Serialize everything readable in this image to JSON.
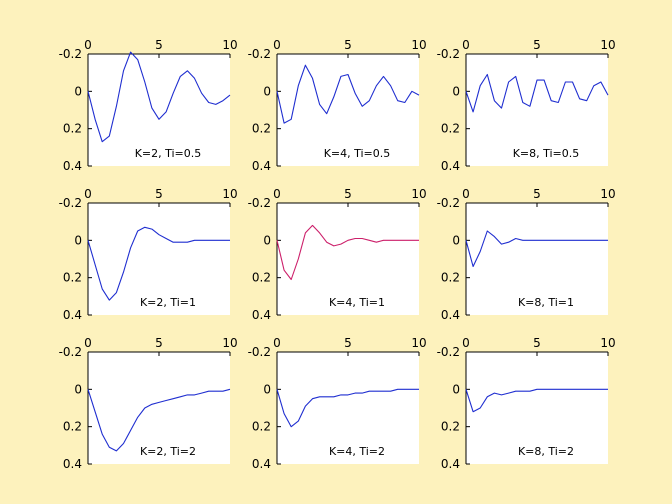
{
  "figure": {
    "background": "#fdf2bd",
    "axes_background": "#ffffff"
  },
  "chart_data": [
    {
      "type": "line",
      "label": "K=2, Ti=0.5",
      "color": "#1f2ed0",
      "x": [
        0,
        0.5,
        1,
        1.5,
        2,
        2.5,
        3,
        3.5,
        4,
        4.5,
        5,
        5.5,
        6,
        6.5,
        7,
        7.5,
        8,
        8.5,
        9,
        9.5,
        10
      ],
      "y": [
        0,
        0.15,
        0.27,
        0.24,
        0.08,
        -0.11,
        -0.21,
        -0.17,
        -0.05,
        0.09,
        0.15,
        0.11,
        0.01,
        -0.08,
        -0.11,
        -0.07,
        0.01,
        0.06,
        0.07,
        0.05,
        0.02
      ],
      "xlim": [
        0,
        10
      ],
      "ylim": [
        -0.2,
        0.4
      ],
      "xticks": [
        0,
        5,
        10
      ],
      "yticks": [
        -0.2,
        0,
        0.2,
        0.4
      ]
    },
    {
      "type": "line",
      "label": "K=4, Ti=0.5",
      "color": "#1f2ed0",
      "x": [
        0,
        0.5,
        1,
        1.5,
        2,
        2.5,
        3,
        3.5,
        4,
        4.5,
        5,
        5.5,
        6,
        6.5,
        7,
        7.5,
        8,
        8.5,
        9,
        9.5,
        10
      ],
      "y": [
        0,
        0.17,
        0.15,
        -0.03,
        -0.14,
        -0.07,
        0.07,
        0.12,
        0.03,
        -0.08,
        -0.09,
        0.01,
        0.08,
        0.05,
        -0.03,
        -0.08,
        -0.03,
        0.05,
        0.06,
        0.0,
        0.02
      ],
      "xlim": [
        0,
        10
      ],
      "ylim": [
        -0.2,
        0.4
      ],
      "xticks": [
        0,
        5,
        10
      ],
      "yticks": [
        -0.2,
        0,
        0.2,
        0.4
      ]
    },
    {
      "type": "line",
      "label": "K=8, Ti=0.5",
      "color": "#1f2ed0",
      "x": [
        0,
        0.5,
        1,
        1.5,
        2,
        2.5,
        3,
        3.5,
        4,
        4.5,
        5,
        5.5,
        6,
        6.5,
        7,
        7.5,
        8,
        8.5,
        9,
        9.5,
        10
      ],
      "y": [
        0,
        0.11,
        -0.03,
        -0.09,
        0.05,
        0.09,
        -0.05,
        -0.08,
        0.06,
        0.08,
        -0.06,
        -0.06,
        0.05,
        0.06,
        -0.05,
        -0.05,
        0.04,
        0.05,
        -0.03,
        -0.05,
        0.02
      ],
      "xlim": [
        0,
        10
      ],
      "ylim": [
        -0.2,
        0.4
      ],
      "xticks": [
        0,
        5,
        10
      ],
      "yticks": [
        -0.2,
        0,
        0.2,
        0.4
      ]
    },
    {
      "type": "line",
      "label": "K=2, Ti=1",
      "color": "#1f2ed0",
      "x": [
        0,
        0.5,
        1,
        1.5,
        2,
        2.5,
        3,
        3.5,
        4,
        4.5,
        5,
        5.5,
        6,
        6.5,
        7,
        7.5,
        8,
        8.5,
        9,
        9.5,
        10
      ],
      "y": [
        0,
        0.13,
        0.26,
        0.32,
        0.28,
        0.17,
        0.04,
        -0.05,
        -0.07,
        -0.06,
        -0.03,
        -0.01,
        0.01,
        0.01,
        0.01,
        0.0,
        0.0,
        0.0,
        0.0,
        0.0,
        0.0
      ],
      "xlim": [
        0,
        10
      ],
      "ylim": [
        -0.2,
        0.4
      ],
      "xticks": [
        0,
        5,
        10
      ],
      "yticks": [
        -0.2,
        0,
        0.2,
        0.4
      ]
    },
    {
      "type": "line",
      "label": "K=4, Ti=1",
      "color": "#cc1f6a",
      "x": [
        0,
        0.5,
        1,
        1.5,
        2,
        2.5,
        3,
        3.5,
        4,
        4.5,
        5,
        5.5,
        6,
        6.5,
        7,
        7.5,
        8,
        8.5,
        9,
        9.5,
        10
      ],
      "y": [
        0,
        0.16,
        0.21,
        0.1,
        -0.04,
        -0.08,
        -0.04,
        0.01,
        0.03,
        0.02,
        0.0,
        -0.01,
        -0.01,
        0.0,
        0.01,
        0.0,
        0.0,
        0.0,
        0.0,
        0.0,
        0.0
      ],
      "xlim": [
        0,
        10
      ],
      "ylim": [
        -0.2,
        0.4
      ],
      "xticks": [
        0,
        5,
        10
      ],
      "yticks": [
        -0.2,
        0,
        0.2,
        0.4
      ]
    },
    {
      "type": "line",
      "label": "K=8, Ti=1",
      "color": "#1f2ed0",
      "x": [
        0,
        0.5,
        1,
        1.5,
        2,
        2.5,
        3,
        3.5,
        4,
        4.5,
        5,
        5.5,
        6,
        6.5,
        7,
        7.5,
        8,
        8.5,
        9,
        9.5,
        10
      ],
      "y": [
        0,
        0.14,
        0.06,
        -0.05,
        -0.02,
        0.02,
        0.01,
        -0.01,
        0.0,
        0.0,
        0.0,
        0.0,
        0.0,
        0.0,
        0.0,
        0.0,
        0.0,
        0.0,
        0.0,
        0.0,
        0.0
      ],
      "xlim": [
        0,
        10
      ],
      "ylim": [
        -0.2,
        0.4
      ],
      "xticks": [
        0,
        5,
        10
      ],
      "yticks": [
        -0.2,
        0,
        0.2,
        0.4
      ]
    },
    {
      "type": "line",
      "label": "K=2, Ti=2",
      "color": "#1f2ed0",
      "x": [
        0,
        0.5,
        1,
        1.5,
        2,
        2.5,
        3,
        3.5,
        4,
        4.5,
        5,
        5.5,
        6,
        6.5,
        7,
        7.5,
        8,
        8.5,
        9,
        9.5,
        10
      ],
      "y": [
        0,
        0.12,
        0.24,
        0.31,
        0.33,
        0.29,
        0.22,
        0.15,
        0.1,
        0.08,
        0.07,
        0.06,
        0.05,
        0.04,
        0.03,
        0.03,
        0.02,
        0.01,
        0.01,
        0.01,
        0.0
      ],
      "xlim": [
        0,
        10
      ],
      "ylim": [
        -0.2,
        0.4
      ],
      "xticks": [
        0,
        5,
        10
      ],
      "yticks": [
        -0.2,
        0,
        0.2,
        0.4
      ]
    },
    {
      "type": "line",
      "label": "K=4, Ti=2",
      "color": "#1f2ed0",
      "x": [
        0,
        0.5,
        1,
        1.5,
        2,
        2.5,
        3,
        3.5,
        4,
        4.5,
        5,
        5.5,
        6,
        6.5,
        7,
        7.5,
        8,
        8.5,
        9,
        9.5,
        10
      ],
      "y": [
        0,
        0.13,
        0.2,
        0.17,
        0.09,
        0.05,
        0.04,
        0.04,
        0.04,
        0.03,
        0.03,
        0.02,
        0.02,
        0.01,
        0.01,
        0.01,
        0.01,
        0.0,
        0.0,
        0.0,
        0.0
      ],
      "xlim": [
        0,
        10
      ],
      "ylim": [
        -0.2,
        0.4
      ],
      "xticks": [
        0,
        5,
        10
      ],
      "yticks": [
        -0.2,
        0,
        0.2,
        0.4
      ]
    },
    {
      "type": "line",
      "label": "K=8, Ti=2",
      "color": "#1f2ed0",
      "x": [
        0,
        0.5,
        1,
        1.5,
        2,
        2.5,
        3,
        3.5,
        4,
        4.5,
        5,
        5.5,
        6,
        6.5,
        7,
        7.5,
        8,
        8.5,
        9,
        9.5,
        10
      ],
      "y": [
        0,
        0.12,
        0.1,
        0.04,
        0.02,
        0.03,
        0.02,
        0.01,
        0.01,
        0.01,
        0.0,
        0.0,
        0.0,
        0.0,
        0.0,
        0.0,
        0.0,
        0.0,
        0.0,
        0.0,
        0.0
      ],
      "xlim": [
        0,
        10
      ],
      "ylim": [
        -0.2,
        0.4
      ],
      "xticks": [
        0,
        5,
        10
      ],
      "yticks": [
        -0.2,
        0,
        0.2,
        0.4
      ]
    }
  ]
}
